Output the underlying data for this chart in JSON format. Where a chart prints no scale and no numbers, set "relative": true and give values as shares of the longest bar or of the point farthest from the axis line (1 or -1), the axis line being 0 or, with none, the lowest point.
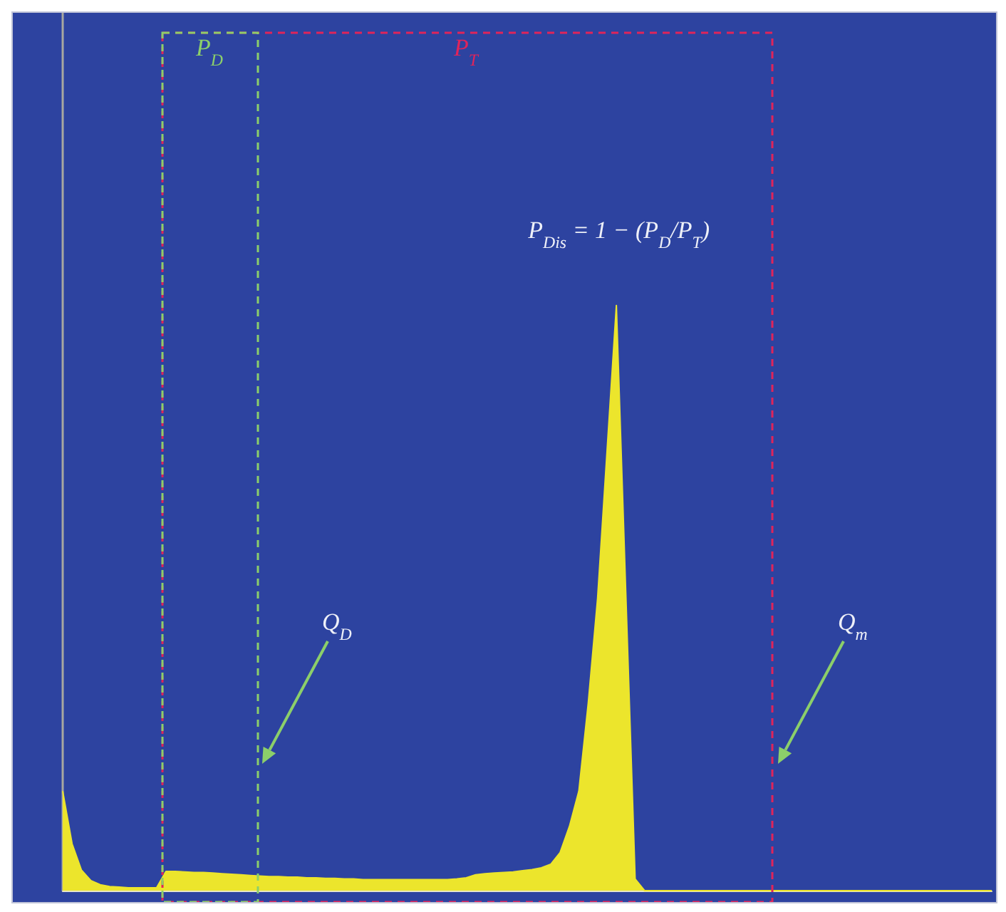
{
  "chart_data": {
    "type": "area",
    "relative": true,
    "categories": [
      null,
      null,
      null,
      null,
      null,
      null,
      null,
      null,
      null,
      null,
      null,
      null,
      null,
      null,
      null,
      null,
      null,
      null,
      null,
      null,
      null,
      null,
      null,
      null,
      null,
      null,
      null,
      null,
      null,
      null,
      null,
      null,
      null,
      null,
      null,
      null,
      null,
      null,
      null,
      null,
      null,
      null,
      null,
      null,
      null,
      null,
      null,
      null,
      null,
      null,
      null,
      null,
      null,
      null,
      null,
      null,
      null,
      null,
      null,
      null,
      null,
      null,
      null,
      null,
      null,
      null,
      null,
      null,
      null,
      null,
      null,
      null,
      null,
      null,
      null,
      null,
      null,
      null,
      null,
      null,
      null,
      null,
      null,
      null,
      null,
      null,
      null,
      null,
      null,
      null,
      null,
      null,
      null,
      null,
      null,
      null,
      null,
      null,
      null,
      null
    ],
    "series": [
      {
        "color": "#ece52c",
        "values": [
          0.17,
          0.08,
          0.035,
          0.017,
          0.01,
          0.007,
          0.006,
          0.005,
          0.005,
          0.005,
          0.005,
          0.033,
          0.033,
          0.032,
          0.031,
          0.031,
          0.03,
          0.029,
          0.028,
          0.027,
          0.026,
          0.025,
          0.024,
          0.024,
          0.023,
          0.023,
          0.022,
          0.022,
          0.021,
          0.021,
          0.02,
          0.02,
          0.019,
          0.019,
          0.019,
          0.019,
          0.019,
          0.019,
          0.019,
          0.019,
          0.019,
          0.019,
          0.02,
          0.022,
          0.027,
          0.029,
          0.03,
          0.031,
          0.032,
          0.034,
          0.036,
          0.039,
          0.045,
          0.065,
          0.11,
          0.17,
          0.32,
          0.5,
          0.75,
          1,
          0.51,
          0.02,
          0,
          0,
          0,
          0,
          0,
          0,
          0,
          0,
          0,
          0,
          0,
          0,
          0,
          0,
          0,
          0,
          0,
          0,
          0,
          0,
          0,
          0,
          0,
          0,
          0,
          0,
          0,
          0,
          0,
          0,
          0,
          0,
          0,
          0,
          0,
          0,
          0,
          0
        ]
      }
    ],
    "annotations": [
      "P$_{D}$",
      "P$_{T}$",
      "P$_{Dis}$ = 1 − (P$_{D}$/P$_{T}$)",
      "Q$_{D}$",
      "Q$_{m}$"
    ]
  }
}
